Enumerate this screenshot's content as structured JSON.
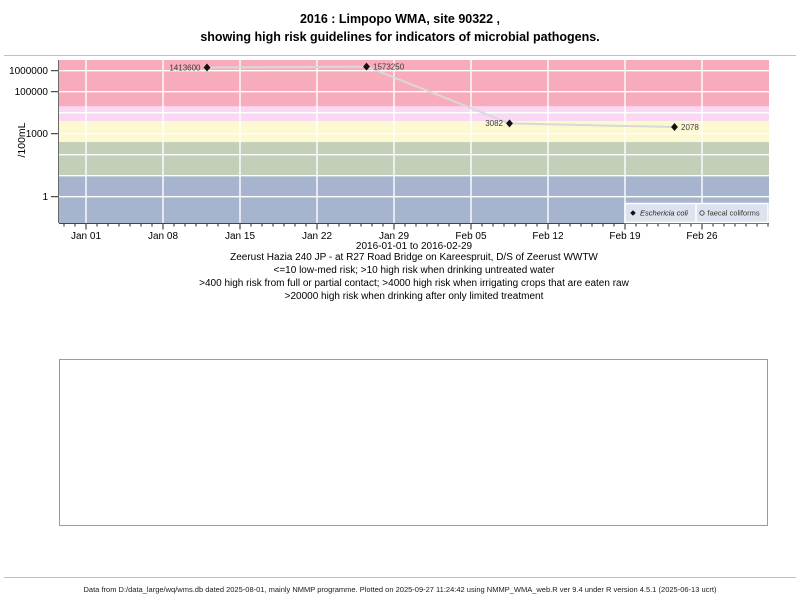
{
  "page": {
    "title_line1": "2016 : Limpopo WMA, site 90322 ,",
    "title_line2": "showing high risk guidelines for indicators of microbial pathogens.",
    "footer": "Data from D:/data_large/wq/wms.db dated 2025-08-01, mainly NMMP programme. Plotted on 2025-09-27 11:24:42 using NMMP_WMA_web.R ver 9.4 under R version 4.5.1 (2025-06-13 ucrt)"
  },
  "captions": {
    "site": "Zeerust Hazia 240 JP - at R27 Road Bridge on Kareespruit, D/S of Zeerust WWTW",
    "guideline1": "<=10 low-med risk; >10 high risk when drinking untreated water",
    "guideline2": ">400 high risk from full or partial contact; >4000 high risk when irrigating crops that are eaten raw",
    "guideline3": ">20000 high risk when drinking after only limited treatment"
  },
  "chart_data": {
    "type": "line",
    "title": "2016 : Limpopo WMA, site 90322 , showing high risk guidelines for indicators of microbial pathogens.",
    "ylabel": "/100mL",
    "y_scale": "log10",
    "y_ticks": [
      {
        "label": "1000000",
        "value": 1000000
      },
      {
        "label": "100000",
        "value": 100000
      },
      {
        "label": "1000",
        "value": 1000
      },
      {
        "label": "1",
        "value": 1
      }
    ],
    "x_ticks": [
      {
        "label": "Jan 01",
        "day": 0
      },
      {
        "label": "Jan 08",
        "day": 7
      },
      {
        "label": "Jan 15",
        "day": 14
      },
      {
        "label": "Jan 22",
        "day": 21
      },
      {
        "label": "Jan 29",
        "day": 28
      },
      {
        "label": "Feb 05",
        "day": 35
      },
      {
        "label": "Feb 12",
        "day": 42
      },
      {
        "label": "Feb 19",
        "day": 49
      },
      {
        "label": "Feb 26",
        "day": 56
      }
    ],
    "x_axis_sublabel": "2016-01-01 to 2016-02-29",
    "x_range_days": 59,
    "grid": "white weekly vertical and decade horizontal lines",
    "risk_bands": [
      {
        "range": ">20000",
        "min": 20000,
        "max": null,
        "color": "#f8abba"
      },
      {
        "range": "4000-20000",
        "min": 4000,
        "max": 20000,
        "color": "#fad8f3"
      },
      {
        "range": "400-4000",
        "min": 400,
        "max": 4000,
        "color": "#fcf8d2"
      },
      {
        "range": "10-400",
        "min": 10,
        "max": 400,
        "color": "#c4cfba"
      },
      {
        "range": "<=10",
        "min": null,
        "max": 10,
        "color": "#a7b4ce"
      }
    ],
    "series": [
      {
        "name": "Eschericia coli",
        "marker": "filled-diamond",
        "marker_color": "#111111",
        "line_color": "#d9d9d9",
        "points": [
          {
            "day": 11,
            "value": 1413600,
            "label": "1413600",
            "label_side": "left"
          },
          {
            "day": 25.5,
            "value": 1573250,
            "label": "1573250",
            "label_side": "right"
          },
          {
            "day": 38.5,
            "value": 3082,
            "label": "3082",
            "label_side": "left"
          },
          {
            "day": 53.5,
            "value": 2078,
            "label": "2078",
            "label_side": "right"
          }
        ]
      },
      {
        "name": "faecal coliforms",
        "marker": "open-circle",
        "marker_color": "#555555",
        "points": []
      }
    ],
    "legend": {
      "position": "bottom-right-inside",
      "background": "#dde3ee",
      "entries": [
        "Eschericia coli",
        "faecal coliforms"
      ]
    }
  }
}
